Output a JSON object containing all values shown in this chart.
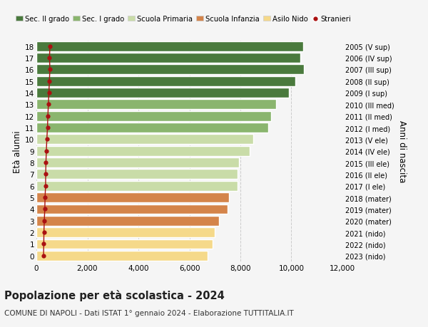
{
  "ages": [
    0,
    1,
    2,
    3,
    4,
    5,
    6,
    7,
    8,
    9,
    10,
    11,
    12,
    13,
    14,
    15,
    16,
    17,
    18
  ],
  "bar_values": [
    6700,
    6900,
    7000,
    7150,
    7500,
    7550,
    7900,
    7900,
    7950,
    8350,
    8500,
    9100,
    9200,
    9400,
    9900,
    10150,
    10500,
    10350,
    10450
  ],
  "stranieri_values": [
    280,
    290,
    295,
    310,
    330,
    340,
    360,
    365,
    375,
    390,
    410,
    435,
    450,
    470,
    490,
    510,
    530,
    515,
    530
  ],
  "right_labels": [
    "2023 (nido)",
    "2022 (nido)",
    "2021 (nido)",
    "2020 (mater)",
    "2019 (mater)",
    "2018 (mater)",
    "2017 (I ele)",
    "2016 (II ele)",
    "2015 (III ele)",
    "2014 (IV ele)",
    "2013 (V ele)",
    "2012 (I med)",
    "2011 (II med)",
    "2010 (III med)",
    "2009 (I sup)",
    "2008 (II sup)",
    "2007 (III sup)",
    "2006 (IV sup)",
    "2005 (V sup)"
  ],
  "bar_colors": [
    "#f5d98a",
    "#f5d98a",
    "#f5d98a",
    "#d4844a",
    "#d4844a",
    "#d4844a",
    "#c9dca8",
    "#c9dca8",
    "#c9dca8",
    "#c9dca8",
    "#c9dca8",
    "#8ab56e",
    "#8ab56e",
    "#8ab56e",
    "#4a7a3d",
    "#4a7a3d",
    "#4a7a3d",
    "#4a7a3d",
    "#4a7a3d"
  ],
  "legend_labels": [
    "Sec. II grado",
    "Sec. I grado",
    "Scuola Primaria",
    "Scuola Infanzia",
    "Asilo Nido",
    "Stranieri"
  ],
  "legend_colors": [
    "#4a7a3d",
    "#8ab56e",
    "#c9dca8",
    "#d4844a",
    "#f5d98a",
    "#aa1111"
  ],
  "ylabel": "Età alunni",
  "right_ylabel": "Anni di nascita",
  "title": "Popolazione per età scolastica - 2024",
  "subtitle": "COMUNE DI NAPOLI - Dati ISTAT 1° gennaio 2024 - Elaborazione TUTTITALIA.IT",
  "xlim": [
    0,
    12000
  ],
  "xticks": [
    0,
    2000,
    4000,
    6000,
    8000,
    10000,
    12000
  ],
  "xtick_labels": [
    "0",
    "2,000",
    "4,000",
    "6,000",
    "8,000",
    "10,000",
    "12,000"
  ],
  "bg_color": "#f5f5f5",
  "stranieri_color": "#aa1111",
  "bar_height": 0.85
}
